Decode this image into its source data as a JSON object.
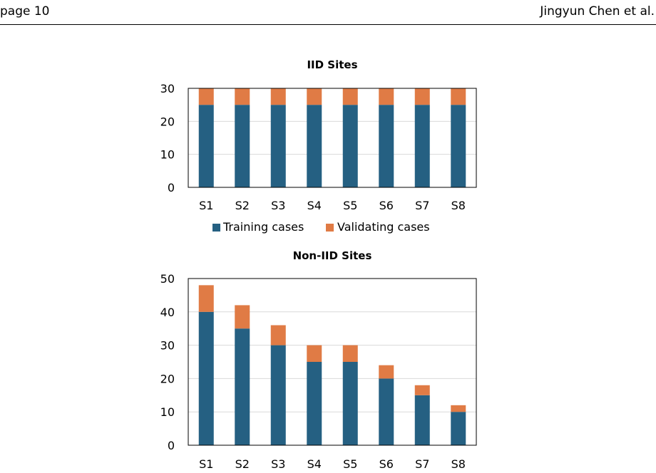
{
  "page_header": {
    "page": "page 10",
    "authors": "Jingyun Chen et al."
  },
  "colors": {
    "training": "#256082",
    "validating": "#E07B45",
    "gridline": "#d9d9d9",
    "frame": "#000000"
  },
  "chart_data": [
    {
      "type": "bar",
      "stacked": true,
      "title": "IID Sites",
      "categories": [
        "S1",
        "S2",
        "S3",
        "S4",
        "S5",
        "S6",
        "S7",
        "S8"
      ],
      "series": [
        {
          "name": "Training cases",
          "values": [
            25,
            25,
            25,
            25,
            25,
            25,
            25,
            25
          ]
        },
        {
          "name": "Validating cases",
          "values": [
            5,
            5,
            5,
            5,
            5,
            5,
            5,
            5
          ]
        }
      ],
      "ylim": [
        0,
        30
      ],
      "yticks": [
        "0",
        "10",
        "20",
        "30"
      ],
      "legend": "bottom",
      "grid": true
    },
    {
      "type": "bar",
      "stacked": true,
      "title": "Non-IID Sites",
      "categories": [
        "S1",
        "S2",
        "S3",
        "S4",
        "S5",
        "S6",
        "S7",
        "S8"
      ],
      "series": [
        {
          "name": "Training cases",
          "values": [
            40,
            35,
            30,
            25,
            25,
            20,
            15,
            10
          ]
        },
        {
          "name": "Validating cases",
          "values": [
            8,
            7,
            6,
            5,
            5,
            4,
            3,
            2
          ]
        }
      ],
      "ylim": [
        0,
        50
      ],
      "yticks": [
        "0",
        "10",
        "20",
        "30",
        "40",
        "50"
      ],
      "legend": "none",
      "grid": true
    }
  ]
}
